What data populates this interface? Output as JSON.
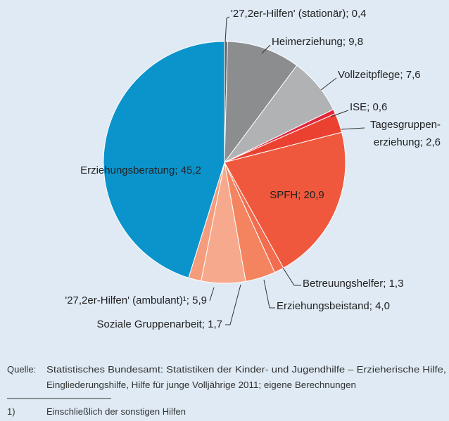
{
  "chart_data": {
    "type": "pie",
    "values": [
      0.4,
      9.8,
      7.6,
      0.6,
      2.6,
      20.9,
      1.3,
      4.0,
      5.9,
      1.7,
      45.2
    ],
    "value_labels": [
      "'27,2er-Hilfen' (stationär); 0,4",
      "Heimerziehung; 9,8",
      "Vollzeitpflege; 7,6",
      "ISE; 0,6",
      [
        "Tagesgruppen-",
        "erziehung; 2,6"
      ],
      "SPFH; 20,9",
      "Betreuungshelfer; 1,3",
      "Erziehungsbeistand; 4,0",
      "'27,2er-Hilfen' (ambulant)¹; 5,9",
      "Soziale Gruppenarbeit; 1,7",
      "Erziehungsberatung; 45,2"
    ],
    "colors": [
      "#5f6062",
      "#8c8d8f",
      "#b1b2b4",
      "#e3263a",
      "#eb4131",
      "#ef583c",
      "#f26c4d",
      "#f4845f",
      "#f6a98c",
      "#f49c7c",
      "#0b93cb"
    ],
    "source_label": "Quelle:",
    "source": [
      "Statistisches Bundesamt: Statistiken der Kinder- und Jugendhilfe – Erzieherische Hilfe,",
      "Eingliederungshilfe, Hilfe für junge Volljährige 2011; eigene Berechnungen"
    ],
    "footnote_marker": "1)",
    "footnote": "Einschließlich der sonstigen Hilfen"
  }
}
